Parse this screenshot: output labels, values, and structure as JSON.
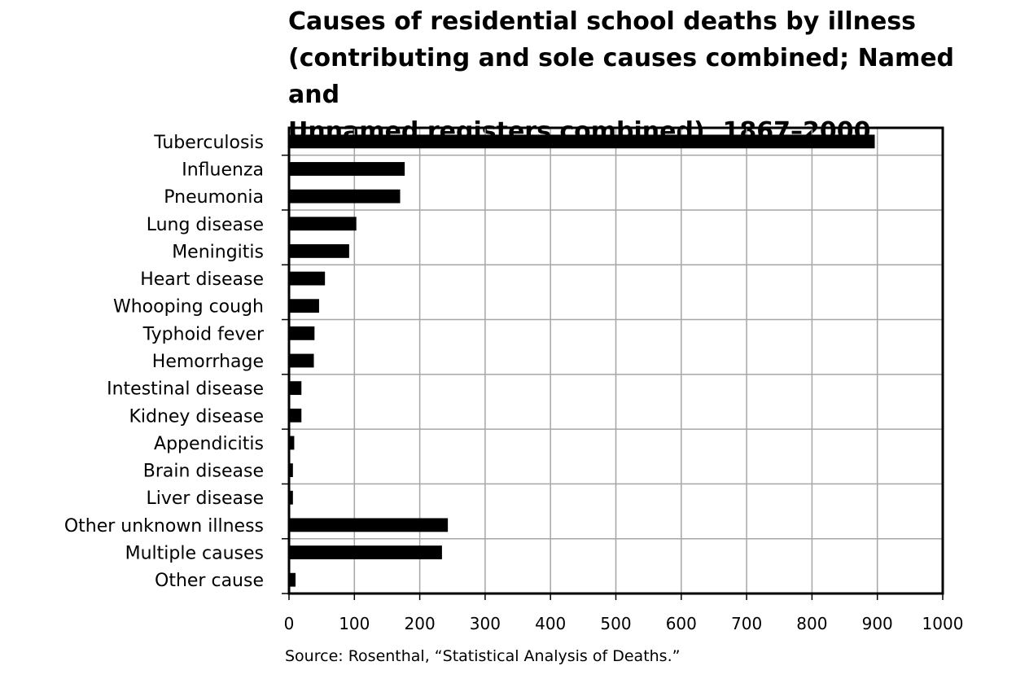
{
  "chart_data": {
    "type": "bar",
    "orientation": "horizontal",
    "title": "Causes of residential school deaths by illness\n(contributing and sole causes combined; Named and\nUnnamed registers combined), 1867–2000",
    "categories": [
      "Tuberculosis",
      "Influenza",
      "Pneumonia",
      "Lung disease",
      "Meningitis",
      "Heart disease",
      "Whooping cough",
      "Typhoid fever",
      "Hemorrhage",
      "Intestinal disease",
      "Kidney disease",
      "Appendicitis",
      "Brain disease",
      "Liver disease",
      "Other unknown illness",
      "Multiple causes",
      "Other cause"
    ],
    "values": [
      896,
      177,
      170,
      103,
      92,
      55,
      46,
      39,
      38,
      19,
      19,
      8,
      6,
      6,
      243,
      234,
      10
    ],
    "xlim": [
      0,
      1000
    ],
    "xticks": [
      "0",
      "100",
      "200",
      "300",
      "400",
      "500",
      "600",
      "700",
      "800",
      "900",
      "1000"
    ],
    "grid": true,
    "bar_color": "#000000",
    "grid_color": "#a6a6a6",
    "source": "Source: Rosenthal, “Statistical Analysis of Deaths.”"
  }
}
